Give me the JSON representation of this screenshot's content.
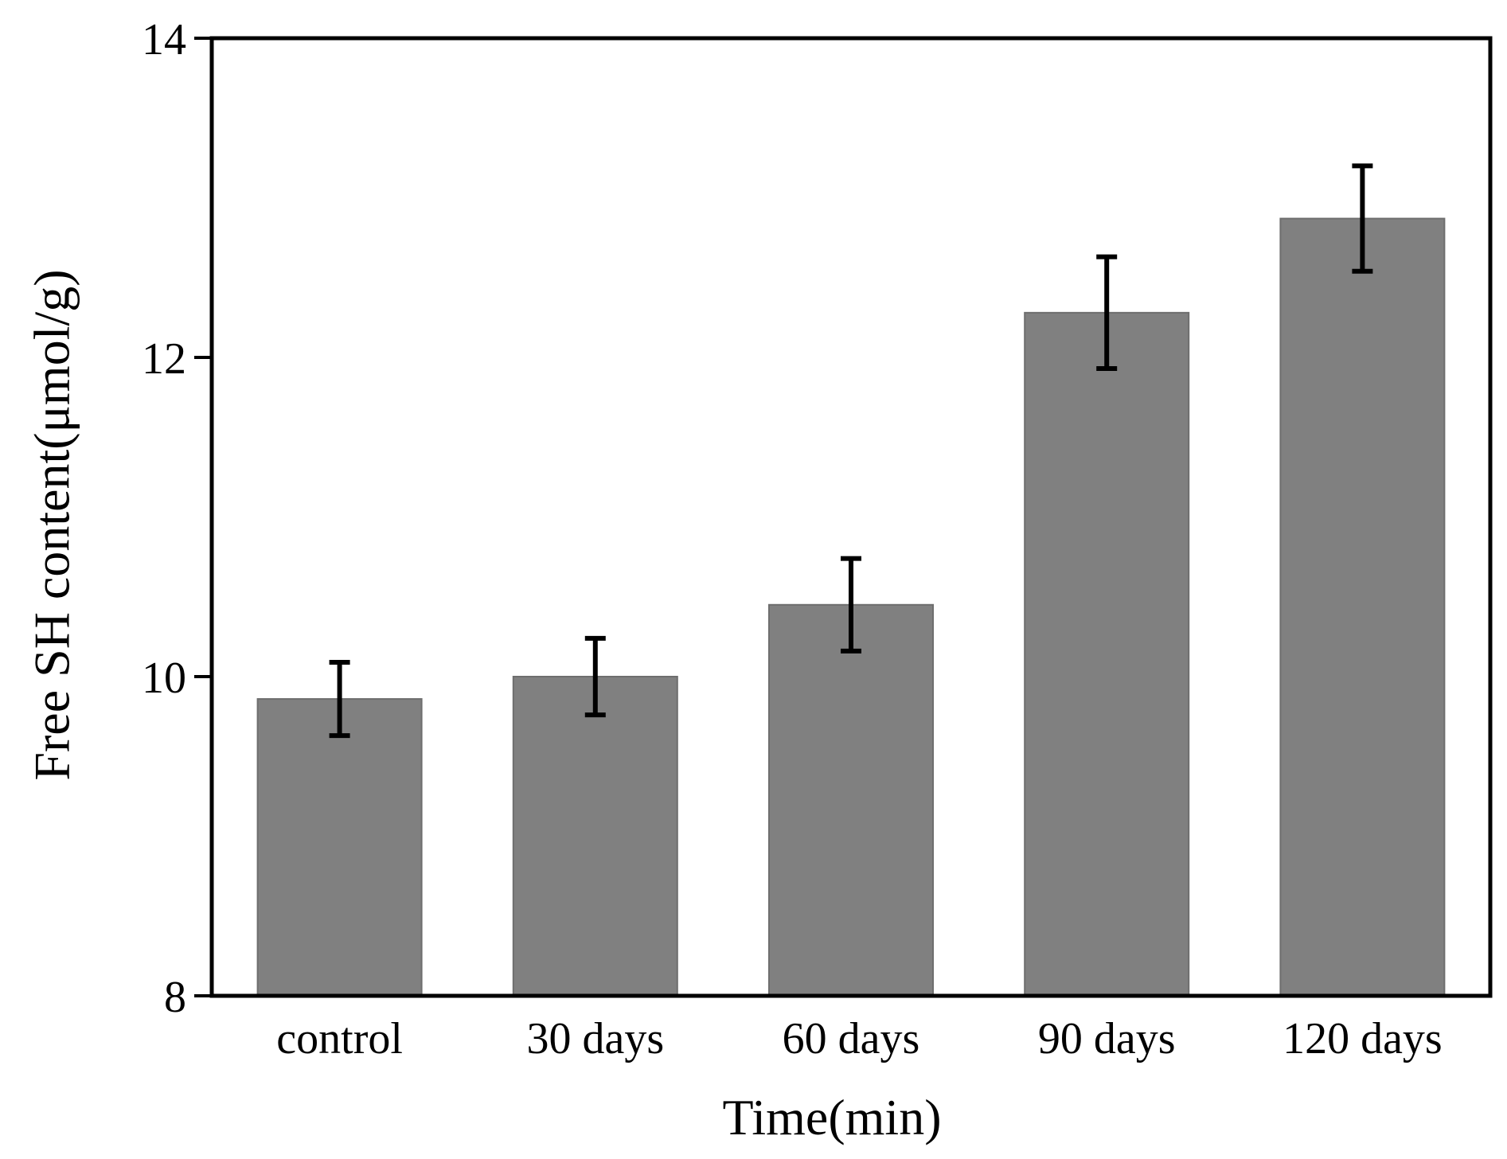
{
  "chart_data": {
    "type": "bar",
    "title": "",
    "xlabel": "Time(min)",
    "ylabel": "Free SH content(μmol/g)",
    "categories": [
      "control",
      "30 days",
      "60 days",
      "90 days",
      "120 days"
    ],
    "values": [
      9.86,
      10.0,
      10.45,
      12.28,
      12.87
    ],
    "errors": [
      0.23,
      0.24,
      0.29,
      0.35,
      0.33
    ],
    "ylim": [
      8,
      14
    ],
    "yticks": [
      "8",
      "10",
      "12",
      "14"
    ],
    "grid": false,
    "bar_color": "#808080",
    "error_color": "#000000"
  }
}
